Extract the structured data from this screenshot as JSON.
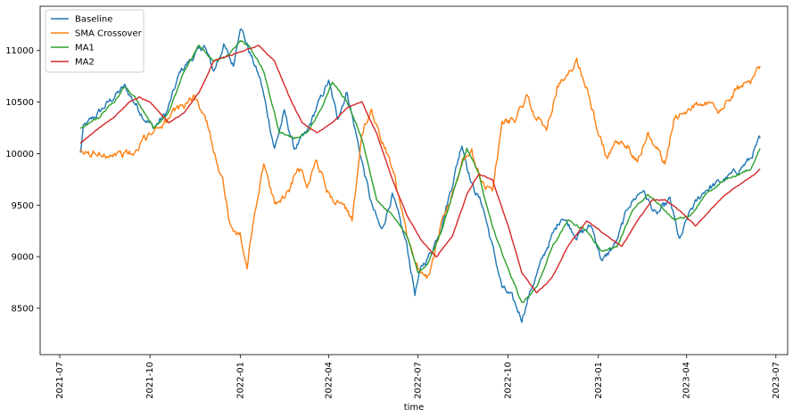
{
  "chart_data": {
    "type": "line",
    "xlabel": "time",
    "ylabel": "",
    "ylim": [
      8050,
      11430
    ],
    "xlim": [
      "2021-06-11",
      "2023-07-13"
    ],
    "grid": false,
    "legend_position": "top-left",
    "x_ticks": [
      {
        "date": "2021-07-01",
        "label": "2021-07"
      },
      {
        "date": "2021-10-01",
        "label": "2021-10"
      },
      {
        "date": "2022-01-01",
        "label": "2022-01"
      },
      {
        "date": "2022-04-01",
        "label": "2022-04"
      },
      {
        "date": "2022-07-01",
        "label": "2022-07"
      },
      {
        "date": "2022-10-01",
        "label": "2022-10"
      },
      {
        "date": "2023-01-01",
        "label": "2023-01"
      },
      {
        "date": "2023-04-01",
        "label": "2023-04"
      },
      {
        "date": "2023-07-01",
        "label": "2023-07"
      }
    ],
    "y_ticks": [
      8500,
      9000,
      9500,
      10000,
      10500,
      11000
    ],
    "series": [
      {
        "name": "Baseline",
        "color": "#1f77b4",
        "noise": 55,
        "points": [
          [
            "2021-07-22",
            10000
          ],
          [
            "2021-07-25",
            10250
          ],
          [
            "2021-08-10",
            10400
          ],
          [
            "2021-08-25",
            10550
          ],
          [
            "2021-09-05",
            10650
          ],
          [
            "2021-09-15",
            10500
          ],
          [
            "2021-09-25",
            10350
          ],
          [
            "2021-10-05",
            10250
          ],
          [
            "2021-10-18",
            10400
          ],
          [
            "2021-11-01",
            10800
          ],
          [
            "2021-11-15",
            10950
          ],
          [
            "2021-11-25",
            11050
          ],
          [
            "2021-12-05",
            10800
          ],
          [
            "2021-12-15",
            11050
          ],
          [
            "2021-12-25",
            10850
          ],
          [
            "2022-01-01",
            11250
          ],
          [
            "2022-01-10",
            11000
          ],
          [
            "2022-01-22",
            10700
          ],
          [
            "2022-02-05",
            10050
          ],
          [
            "2022-02-15",
            10400
          ],
          [
            "2022-02-25",
            10050
          ],
          [
            "2022-03-10",
            10200
          ],
          [
            "2022-03-20",
            10450
          ],
          [
            "2022-04-01",
            10700
          ],
          [
            "2022-04-10",
            10350
          ],
          [
            "2022-04-20",
            10600
          ],
          [
            "2022-05-01",
            10100
          ],
          [
            "2022-05-15",
            9500
          ],
          [
            "2022-05-25",
            9250
          ],
          [
            "2022-06-05",
            9600
          ],
          [
            "2022-06-20",
            9100
          ],
          [
            "2022-06-28",
            8650
          ],
          [
            "2022-07-05",
            8900
          ],
          [
            "2022-07-15",
            9050
          ],
          [
            "2022-07-25",
            9300
          ],
          [
            "2022-08-05",
            9700
          ],
          [
            "2022-08-15",
            10100
          ],
          [
            "2022-08-25",
            9700
          ],
          [
            "2022-09-05",
            9500
          ],
          [
            "2022-09-15",
            9100
          ],
          [
            "2022-09-25",
            8700
          ],
          [
            "2022-10-05",
            8600
          ],
          [
            "2022-10-15",
            8400
          ],
          [
            "2022-10-25",
            8700
          ],
          [
            "2022-11-10",
            9100
          ],
          [
            "2022-11-25",
            9400
          ],
          [
            "2022-12-10",
            9200
          ],
          [
            "2022-12-25",
            9300
          ],
          [
            "2023-01-05",
            8950
          ],
          [
            "2023-01-20",
            9150
          ],
          [
            "2023-02-01",
            9500
          ],
          [
            "2023-02-15",
            9650
          ],
          [
            "2023-03-01",
            9400
          ],
          [
            "2023-03-15",
            9550
          ],
          [
            "2023-03-25",
            9150
          ],
          [
            "2023-04-05",
            9450
          ],
          [
            "2023-04-20",
            9650
          ],
          [
            "2023-05-10",
            9750
          ],
          [
            "2023-05-25",
            9850
          ],
          [
            "2023-06-05",
            9950
          ],
          [
            "2023-06-15",
            10150
          ]
        ]
      },
      {
        "name": "SMA Crossover",
        "color": "#ff7f0e",
        "noise": 60,
        "points": [
          [
            "2021-07-22",
            10000
          ],
          [
            "2021-09-19",
            10000
          ],
          [
            "2021-09-21",
            10100
          ],
          [
            "2021-10-01",
            10200
          ],
          [
            "2021-10-15",
            10300
          ],
          [
            "2021-11-01",
            10450
          ],
          [
            "2021-11-15",
            10550
          ],
          [
            "2021-11-25",
            10400
          ],
          [
            "2021-12-05",
            10050
          ],
          [
            "2021-12-15",
            9700
          ],
          [
            "2021-12-22",
            9300
          ],
          [
            "2022-01-01",
            9200
          ],
          [
            "2022-01-08",
            8900
          ],
          [
            "2022-01-15",
            9400
          ],
          [
            "2022-01-25",
            9900
          ],
          [
            "2022-02-05",
            9500
          ],
          [
            "2022-02-20",
            9650
          ],
          [
            "2022-03-01",
            9900
          ],
          [
            "2022-03-10",
            9700
          ],
          [
            "2022-03-20",
            9950
          ],
          [
            "2022-04-01",
            9600
          ],
          [
            "2022-04-15",
            9500
          ],
          [
            "2022-04-25",
            9350
          ],
          [
            "2022-05-05",
            10200
          ],
          [
            "2022-05-15",
            10400
          ],
          [
            "2022-05-25",
            10150
          ],
          [
            "2022-06-05",
            9850
          ],
          [
            "2022-06-20",
            9200
          ],
          [
            "2022-07-01",
            8900
          ],
          [
            "2022-07-12",
            8800
          ],
          [
            "2022-07-25",
            9300
          ],
          [
            "2022-08-05",
            9600
          ],
          [
            "2022-08-15",
            9900
          ],
          [
            "2022-08-25",
            10000
          ],
          [
            "2022-09-05",
            9700
          ],
          [
            "2022-09-15",
            9650
          ],
          [
            "2022-09-25",
            10300
          ],
          [
            "2022-10-10",
            10350
          ],
          [
            "2022-10-20",
            10550
          ],
          [
            "2022-10-30",
            10350
          ],
          [
            "2022-11-10",
            10250
          ],
          [
            "2022-11-20",
            10650
          ],
          [
            "2022-12-01",
            10750
          ],
          [
            "2022-12-10",
            10900
          ],
          [
            "2022-12-20",
            10650
          ],
          [
            "2023-01-01",
            10200
          ],
          [
            "2023-01-10",
            9950
          ],
          [
            "2023-01-20",
            10100
          ],
          [
            "2023-02-01",
            10050
          ],
          [
            "2023-02-10",
            9900
          ],
          [
            "2023-02-20",
            10200
          ],
          [
            "2023-03-01",
            10050
          ],
          [
            "2023-03-10",
            9900
          ],
          [
            "2023-03-20",
            10350
          ],
          [
            "2023-04-05",
            10450
          ],
          [
            "2023-04-20",
            10500
          ],
          [
            "2023-05-05",
            10400
          ],
          [
            "2023-05-20",
            10600
          ],
          [
            "2023-06-05",
            10700
          ],
          [
            "2023-06-15",
            10850
          ]
        ]
      },
      {
        "name": "MA1",
        "color": "#2ca02c",
        "noise": 18,
        "points": [
          [
            "2021-07-22",
            10250
          ],
          [
            "2021-08-10",
            10350
          ],
          [
            "2021-08-25",
            10500
          ],
          [
            "2021-09-05",
            10650
          ],
          [
            "2021-09-15",
            10550
          ],
          [
            "2021-09-25",
            10400
          ],
          [
            "2021-10-05",
            10250
          ],
          [
            "2021-10-20",
            10400
          ],
          [
            "2021-11-05",
            10800
          ],
          [
            "2021-11-20",
            11050
          ],
          [
            "2021-12-05",
            10900
          ],
          [
            "2021-12-20",
            10950
          ],
          [
            "2022-01-01",
            11100
          ],
          [
            "2022-01-10",
            11050
          ],
          [
            "2022-01-25",
            10800
          ],
          [
            "2022-02-10",
            10200
          ],
          [
            "2022-02-25",
            10150
          ],
          [
            "2022-03-10",
            10200
          ],
          [
            "2022-03-25",
            10450
          ],
          [
            "2022-04-05",
            10700
          ],
          [
            "2022-04-20",
            10500
          ],
          [
            "2022-05-05",
            10150
          ],
          [
            "2022-05-20",
            9550
          ],
          [
            "2022-06-05",
            9400
          ],
          [
            "2022-06-20",
            9200
          ],
          [
            "2022-07-01",
            8850
          ],
          [
            "2022-07-12",
            8950
          ],
          [
            "2022-07-25",
            9250
          ],
          [
            "2022-08-10",
            9750
          ],
          [
            "2022-08-20",
            10050
          ],
          [
            "2022-09-01",
            9800
          ],
          [
            "2022-09-15",
            9300
          ],
          [
            "2022-09-30",
            8900
          ],
          [
            "2022-10-15",
            8550
          ],
          [
            "2022-10-30",
            8700
          ],
          [
            "2022-11-15",
            9100
          ],
          [
            "2022-12-01",
            9350
          ],
          [
            "2022-12-20",
            9250
          ],
          [
            "2023-01-05",
            9050
          ],
          [
            "2023-01-20",
            9100
          ],
          [
            "2023-02-05",
            9450
          ],
          [
            "2023-02-20",
            9600
          ],
          [
            "2023-03-05",
            9500
          ],
          [
            "2023-03-20",
            9350
          ],
          [
            "2023-04-05",
            9400
          ],
          [
            "2023-04-20",
            9600
          ],
          [
            "2023-05-10",
            9750
          ],
          [
            "2023-05-25",
            9800
          ],
          [
            "2023-06-05",
            9850
          ],
          [
            "2023-06-15",
            10050
          ]
        ]
      },
      {
        "name": "MA2",
        "color": "#d62728",
        "noise": 8,
        "points": [
          [
            "2021-07-22",
            10100
          ],
          [
            "2021-08-10",
            10250
          ],
          [
            "2021-08-25",
            10350
          ],
          [
            "2021-09-10",
            10500
          ],
          [
            "2021-09-20",
            10550
          ],
          [
            "2021-10-01",
            10500
          ],
          [
            "2021-10-20",
            10300
          ],
          [
            "2021-11-05",
            10400
          ],
          [
            "2021-11-20",
            10600
          ],
          [
            "2021-12-05",
            10900
          ],
          [
            "2021-12-20",
            10950
          ],
          [
            "2022-01-05",
            11000
          ],
          [
            "2022-01-20",
            11050
          ],
          [
            "2022-02-05",
            10900
          ],
          [
            "2022-02-20",
            10550
          ],
          [
            "2022-03-05",
            10300
          ],
          [
            "2022-03-20",
            10200
          ],
          [
            "2022-04-05",
            10300
          ],
          [
            "2022-04-20",
            10450
          ],
          [
            "2022-05-05",
            10500
          ],
          [
            "2022-05-20",
            10200
          ],
          [
            "2022-06-05",
            9750
          ],
          [
            "2022-06-20",
            9400
          ],
          [
            "2022-07-05",
            9150
          ],
          [
            "2022-07-20",
            9000
          ],
          [
            "2022-08-05",
            9200
          ],
          [
            "2022-08-20",
            9600
          ],
          [
            "2022-09-01",
            9800
          ],
          [
            "2022-09-15",
            9750
          ],
          [
            "2022-10-01",
            9300
          ],
          [
            "2022-10-15",
            8850
          ],
          [
            "2022-10-30",
            8650
          ],
          [
            "2022-11-15",
            8800
          ],
          [
            "2022-12-01",
            9100
          ],
          [
            "2022-12-20",
            9350
          ],
          [
            "2023-01-10",
            9200
          ],
          [
            "2023-01-25",
            9100
          ],
          [
            "2023-02-10",
            9350
          ],
          [
            "2023-02-25",
            9550
          ],
          [
            "2023-03-10",
            9550
          ],
          [
            "2023-03-25",
            9450
          ],
          [
            "2023-04-10",
            9300
          ],
          [
            "2023-04-25",
            9450
          ],
          [
            "2023-05-10",
            9600
          ],
          [
            "2023-05-25",
            9700
          ],
          [
            "2023-06-10",
            9800
          ],
          [
            "2023-06-15",
            9850
          ]
        ]
      }
    ]
  }
}
